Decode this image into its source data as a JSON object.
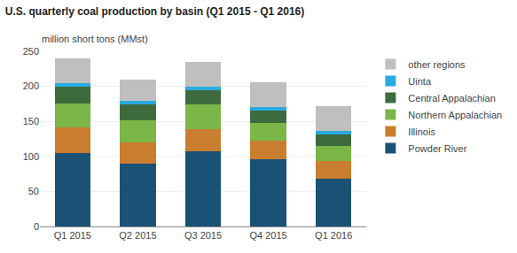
{
  "chart_data": {
    "type": "bar",
    "stacked": true,
    "title": "U.S. quarterly coal production by basin (Q1 2015 - Q1 2016)",
    "ylabel": "million short tons (MMst)",
    "categories": [
      "Q1 2015",
      "Q2 2015",
      "Q3 2015",
      "Q4 2015",
      "Q1 2016"
    ],
    "series": [
      {
        "name": "Powder River",
        "color": "#1a5276",
        "values": [
          105,
          90,
          107,
          96,
          68
        ]
      },
      {
        "name": "Illinois",
        "color": "#c97d2e",
        "values": [
          37,
          30,
          32,
          26,
          25
        ]
      },
      {
        "name": "Northern Appalachian",
        "color": "#7ab648",
        "values": [
          33,
          32,
          35,
          26,
          22
        ]
      },
      {
        "name": "Central Appalachian",
        "color": "#3d6b3d",
        "values": [
          25,
          22,
          20,
          18,
          16
        ]
      },
      {
        "name": "Uinta",
        "color": "#29aae1",
        "values": [
          5,
          5,
          5,
          5,
          5
        ]
      },
      {
        "name": "other regions",
        "color": "#c0bfbf",
        "values": [
          35,
          31,
          36,
          35,
          36
        ]
      }
    ],
    "ylim": [
      0,
      250
    ],
    "yticks": [
      0,
      50,
      100,
      150,
      200,
      250
    ],
    "grid": true,
    "legend": "right"
  }
}
